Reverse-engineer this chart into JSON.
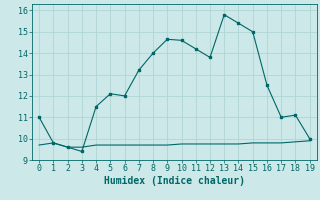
{
  "x": [
    0,
    1,
    2,
    3,
    4,
    5,
    6,
    7,
    8,
    9,
    10,
    11,
    12,
    13,
    14,
    15,
    16,
    17,
    18,
    19
  ],
  "y_main": [
    11,
    9.8,
    9.6,
    9.4,
    11.5,
    12.1,
    12.0,
    13.2,
    14.0,
    14.65,
    14.6,
    14.2,
    13.8,
    15.8,
    15.4,
    15.0,
    12.5,
    11.0,
    11.1,
    10.0
  ],
  "y_ref": [
    9.7,
    9.8,
    9.6,
    9.6,
    9.7,
    9.7,
    9.7,
    9.7,
    9.7,
    9.7,
    9.75,
    9.75,
    9.75,
    9.75,
    9.75,
    9.8,
    9.8,
    9.8,
    9.85,
    9.9
  ],
  "line_color": "#006666",
  "bg_color": "#cce8e8",
  "grid_color": "#b0d4d4",
  "xlabel": "Humidex (Indice chaleur)",
  "xlim": [
    -0.5,
    19.5
  ],
  "ylim": [
    9,
    16.3
  ],
  "xticks": [
    0,
    1,
    2,
    3,
    4,
    5,
    6,
    7,
    8,
    9,
    10,
    11,
    12,
    13,
    14,
    15,
    16,
    17,
    18,
    19
  ],
  "yticks": [
    9,
    10,
    11,
    12,
    13,
    14,
    15,
    16
  ],
  "xlabel_fontsize": 7,
  "tick_fontsize": 6
}
